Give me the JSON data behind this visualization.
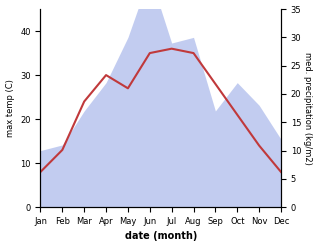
{
  "months": [
    "Jan",
    "Feb",
    "Mar",
    "Apr",
    "May",
    "Jun",
    "Jul",
    "Aug",
    "Sep",
    "Oct",
    "Nov",
    "Dec"
  ],
  "temp": [
    8,
    13,
    24,
    30,
    27,
    35,
    36,
    35,
    28,
    21,
    14,
    8
  ],
  "precip": [
    10,
    11,
    17,
    22,
    30,
    41,
    29,
    30,
    17,
    22,
    18,
    12
  ],
  "temp_color": "#c0393b",
  "precip_color": "#b8c4ee",
  "left_ylim": [
    0,
    45
  ],
  "right_ylim": [
    0,
    35
  ],
  "left_yticks": [
    0,
    10,
    20,
    30,
    40
  ],
  "right_yticks": [
    0,
    5,
    10,
    15,
    20,
    25,
    30,
    35
  ],
  "xlabel": "date (month)",
  "ylabel_left": "max temp (C)",
  "ylabel_right": "med. precipitation (kg/m2)",
  "bg_color": "#ffffff"
}
